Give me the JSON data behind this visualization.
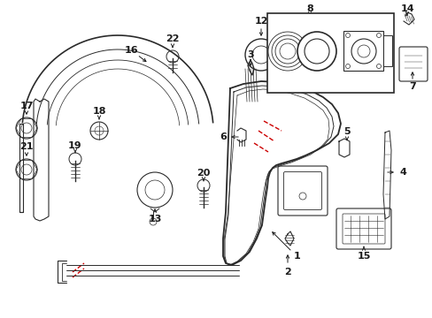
{
  "bg_color": "#ffffff",
  "line_color": "#2a2a2a",
  "red_color": "#cc0000",
  "fig_width": 4.89,
  "fig_height": 3.6,
  "dpi": 100
}
